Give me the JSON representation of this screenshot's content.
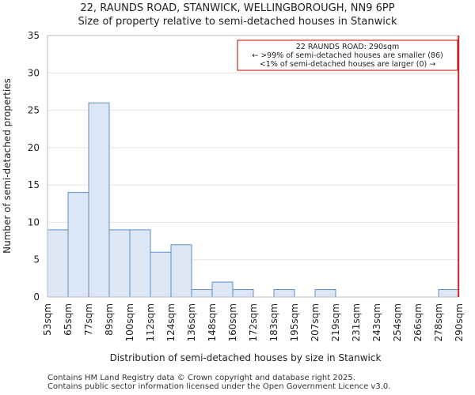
{
  "chart_data": {
    "type": "histogram",
    "title_line1": "22, RAUNDS ROAD, STANWICK, WELLINGBOROUGH, NN9 6PP",
    "title_line2": "Size of property relative to semi-detached houses in Stanwick",
    "xlabel": "Distribution of semi-detached houses by size in Stanwick",
    "ylabel": "Number of semi-detached properties",
    "categories": [
      "53sqm",
      "65sqm",
      "77sqm",
      "89sqm",
      "100sqm",
      "112sqm",
      "124sqm",
      "136sqm",
      "148sqm",
      "160sqm",
      "172sqm",
      "183sqm",
      "195sqm",
      "207sqm",
      "219sqm",
      "231sqm",
      "243sqm",
      "254sqm",
      "266sqm",
      "278sqm",
      "290sqm"
    ],
    "values": [
      9,
      14,
      26,
      9,
      9,
      6,
      7,
      1,
      2,
      1,
      0,
      1,
      0,
      1,
      0,
      0,
      0,
      0,
      0,
      1
    ],
    "ylim": [
      0,
      35
    ],
    "yticks": [
      0,
      5,
      10,
      15,
      20,
      25,
      30,
      35
    ],
    "bar_fill": "#dce6f4",
    "bar_stroke": "#5b8fc7",
    "marker_color": "#cc0000",
    "marker_category_index": 20,
    "annotation": {
      "line1": "22 RAUNDS ROAD: 290sqm",
      "line2": "← >99% of semi-detached houses are smaller (86)",
      "line3": "<1% of semi-detached houses are larger (0) →"
    }
  },
  "footer": {
    "line1": "Contains HM Land Registry data © Crown copyright and database right 2025.",
    "line2": "Contains public sector information licensed under the Open Government Licence v3.0."
  }
}
